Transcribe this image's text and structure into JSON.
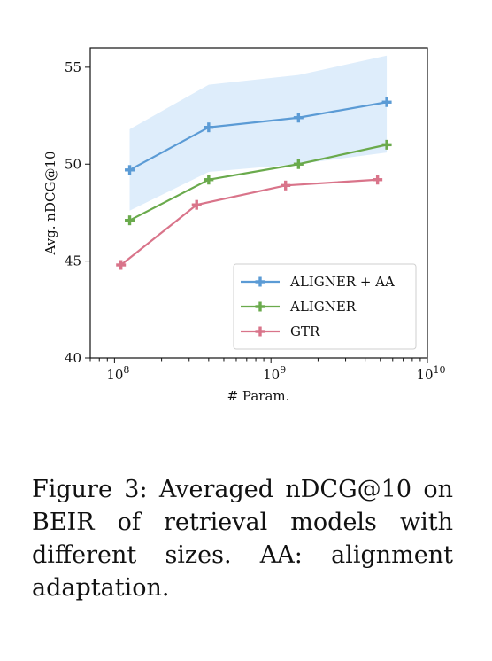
{
  "chart_data": {
    "type": "line",
    "xscale": "log",
    "xlim": [
      70000000,
      10000000000
    ],
    "ylim": [
      40,
      56
    ],
    "xlabel": "# Param.",
    "ylabel": "Avg. nDCG@10",
    "xticks": [
      {
        "value": 100000000,
        "base": "10",
        "exp": "8"
      },
      {
        "value": 1000000000,
        "base": "10",
        "exp": "9"
      },
      {
        "value": 10000000000,
        "base": "10",
        "exp": "10"
      }
    ],
    "yticks": [
      40,
      45,
      50,
      55
    ],
    "grid": false,
    "legend_position": "lower-right",
    "series": [
      {
        "name": "ALIGNER + AA",
        "color": "#5b9bd5",
        "x": [
          125000000,
          400000000,
          1500000000,
          5500000000
        ],
        "y": [
          49.7,
          51.9,
          52.4,
          53.2
        ],
        "band_low": [
          47.6,
          49.6,
          50.0,
          50.6
        ],
        "band_high": [
          51.8,
          54.1,
          54.6,
          55.6
        ],
        "band_color": "#deedfb"
      },
      {
        "name": "ALIGNER",
        "color": "#6aaa4c",
        "x": [
          125000000,
          400000000,
          1500000000,
          5500000000
        ],
        "y": [
          47.1,
          49.2,
          50.0,
          51.0
        ]
      },
      {
        "name": "GTR",
        "color": "#d9748a",
        "x": [
          110000000,
          335000000,
          1240000000,
          4800000000
        ],
        "y": [
          44.8,
          47.9,
          48.9,
          49.2
        ]
      }
    ]
  },
  "caption": "Figure 3: Averaged nDCG@10 on BEIR of retrieval models with different sizes. AA: alignment adaptation."
}
